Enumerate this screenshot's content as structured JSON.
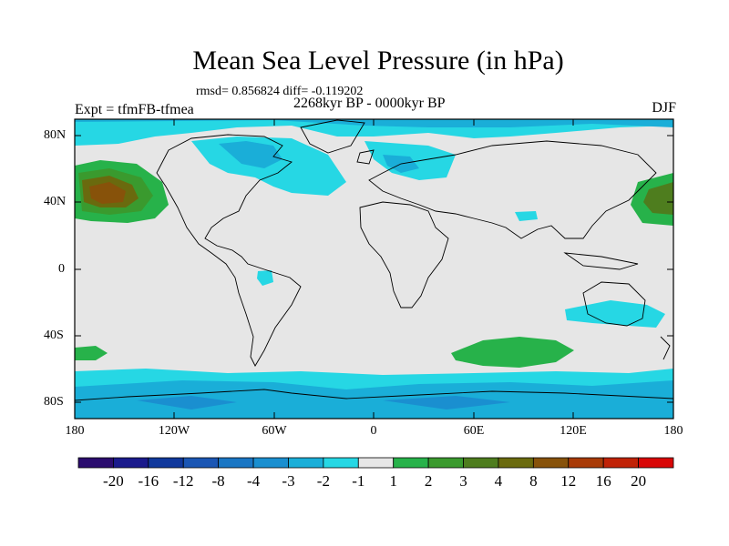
{
  "title": "Mean Sea Level Pressure (in hPa)",
  "stats": "rmsd= 0.856824 diff= -0.119202",
  "period": "2268kyr BP - 0000kyr BP",
  "experiment": "Expt = tfmFB-tfmea",
  "season": "DJF",
  "lat_labels": [
    "80N",
    "40N",
    "0",
    "40S",
    "80S"
  ],
  "lon_labels": [
    "180",
    "120W",
    "60W",
    "0",
    "60E",
    "120E",
    "180"
  ],
  "colorbar": {
    "labels": [
      "-20",
      "-16",
      "-12",
      "-8",
      "-4",
      "-3",
      "-2",
      "-1",
      "1",
      "2",
      "3",
      "4",
      "8",
      "12",
      "16",
      "20"
    ],
    "colors": [
      "#2b0c6e",
      "#1a1a8c",
      "#10389c",
      "#1a56b4",
      "#1976c4",
      "#1a8fd0",
      "#1aaed8",
      "#26d7e4",
      "#e6e6e6",
      "#27b24a",
      "#3a9a2e",
      "#4e7d1e",
      "#6a6a0e",
      "#87520a",
      "#a83a06",
      "#c02206",
      "#d80606"
    ]
  }
}
